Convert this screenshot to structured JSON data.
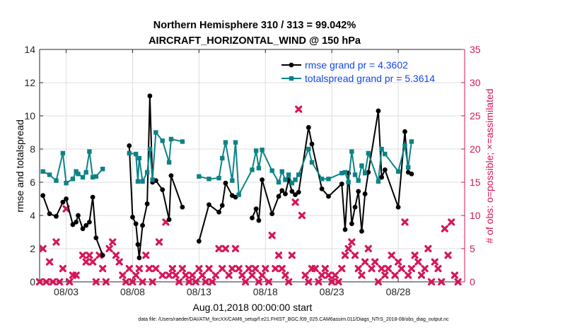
{
  "chart_data": {
    "type": "line",
    "title": "Northern Hemisphere 310 / 313 = 99.042%",
    "subtitle": "AIRCRAFT_HORIZONTAL_WIND @ 150 hPa",
    "xlabel": "Aug.01,2018 00:00:00 start",
    "ylabel": "rmse and totalspread",
    "ylabel_right": "# of obs: o=possible; ×=assimilated",
    "xlim": [
      1,
      33
    ],
    "ylim": [
      0,
      14
    ],
    "ylim_right": [
      0,
      35
    ],
    "xticks": [
      3,
      8,
      13,
      18,
      23,
      28
    ],
    "xticklabels": [
      "08/03",
      "08/08",
      "08/13",
      "08/18",
      "08/23",
      "08/28"
    ],
    "yticks": [
      0,
      2,
      4,
      6,
      8,
      10,
      12,
      14
    ],
    "yticks_right": [
      0,
      5,
      10,
      15,
      20,
      25,
      30,
      35
    ],
    "grid": true,
    "legend_position": "top-right",
    "series": [
      {
        "name": "rmse grand pr = 4.3602",
        "color": "#000000",
        "axis": "left",
        "points": [
          [
            1.25,
            5.2
          ],
          [
            1.75,
            4.1
          ],
          [
            2.25,
            3.95
          ],
          [
            2.75,
            4.8
          ],
          [
            3.0,
            5.0
          ],
          [
            3.5,
            3.45
          ],
          [
            3.75,
            3.6
          ],
          [
            3.9,
            4.0
          ],
          [
            4.25,
            3.2
          ],
          [
            4.5,
            3.4
          ],
          [
            4.75,
            3.6
          ],
          [
            5.0,
            5.1
          ],
          [
            5.25,
            2.65
          ],
          [
            5.75,
            1.6
          ],
          [
            7.75,
            8.2
          ],
          [
            8.0,
            3.9
          ],
          [
            8.25,
            3.5
          ],
          [
            8.4,
            2.25
          ],
          [
            8.5,
            1.45
          ],
          [
            8.75,
            3.4
          ],
          [
            9.1,
            4.7
          ],
          [
            9.3,
            11.2
          ],
          [
            9.5,
            6.0
          ],
          [
            9.75,
            6.1
          ],
          [
            10.25,
            5.55
          ],
          [
            10.75,
            3.75
          ],
          [
            10.9,
            6.4
          ],
          [
            11.75,
            4.5
          ],
          [
            13.0,
            2.45
          ],
          [
            13.75,
            4.65
          ],
          [
            14.5,
            4.2
          ],
          [
            14.75,
            4.6
          ],
          [
            15.0,
            5.95
          ],
          [
            15.5,
            5.2
          ],
          [
            15.75,
            5.1
          ],
          [
            17.0,
            3.85
          ],
          [
            17.3,
            4.4
          ],
          [
            17.5,
            3.7
          ],
          [
            17.75,
            6.15
          ],
          [
            18.5,
            4.1
          ],
          [
            19.0,
            5.15
          ],
          [
            19.25,
            5.5
          ],
          [
            19.5,
            5.3
          ],
          [
            19.75,
            6.15
          ],
          [
            20.0,
            5.45
          ],
          [
            20.25,
            5.25
          ],
          [
            20.5,
            5.4
          ],
          [
            21.25,
            9.3
          ],
          [
            21.5,
            8.3
          ],
          [
            22.25,
            5.6
          ],
          [
            22.75,
            5.15
          ],
          [
            23.75,
            5.9
          ],
          [
            24.0,
            3.15
          ],
          [
            24.25,
            6.55
          ],
          [
            24.5,
            3.5
          ],
          [
            24.75,
            4.5
          ],
          [
            25.0,
            5.45
          ],
          [
            25.25,
            3.05
          ],
          [
            25.5,
            5.3
          ],
          [
            25.75,
            6.6
          ],
          [
            26.5,
            10.3
          ],
          [
            26.75,
            6.3
          ],
          [
            27.0,
            6.75
          ],
          [
            28.0,
            4.5
          ],
          [
            28.5,
            9.05
          ],
          [
            28.75,
            6.6
          ],
          [
            29.0,
            6.5
          ]
        ]
      },
      {
        "name": "totalspread grand pr = 5.3614",
        "color": "#0d8286",
        "axis": "left",
        "points": [
          [
            1.25,
            6.65
          ],
          [
            1.75,
            6.45
          ],
          [
            2.25,
            6.1
          ],
          [
            2.75,
            7.75
          ],
          [
            3.0,
            5.95
          ],
          [
            3.5,
            6.2
          ],
          [
            3.75,
            6.65
          ],
          [
            3.9,
            6.5
          ],
          [
            4.25,
            6.3
          ],
          [
            4.5,
            6.6
          ],
          [
            4.75,
            7.85
          ],
          [
            5.0,
            6.3
          ],
          [
            5.25,
            6.35
          ],
          [
            5.75,
            6.8
          ],
          [
            7.75,
            7.75
          ],
          [
            8.25,
            7.7
          ],
          [
            8.4,
            6.05
          ],
          [
            8.5,
            7.45
          ],
          [
            8.75,
            6.05
          ],
          [
            9.1,
            6.6
          ],
          [
            9.3,
            8.0
          ],
          [
            9.5,
            6.15
          ],
          [
            9.75,
            9.0
          ],
          [
            10.25,
            8.5
          ],
          [
            10.75,
            7.2
          ],
          [
            10.9,
            8.6
          ],
          [
            11.75,
            8.45
          ],
          [
            13.0,
            6.35
          ],
          [
            13.75,
            6.2
          ],
          [
            14.5,
            6.25
          ],
          [
            14.75,
            7.45
          ],
          [
            15.0,
            8.4
          ],
          [
            15.5,
            6.1
          ],
          [
            15.75,
            8.4
          ],
          [
            16.0,
            5.25
          ],
          [
            17.0,
            6.75
          ],
          [
            17.3,
            7.9
          ],
          [
            17.5,
            6.85
          ],
          [
            17.75,
            7.95
          ],
          [
            18.5,
            6.7
          ],
          [
            19.0,
            6.0
          ],
          [
            19.25,
            6.65
          ],
          [
            19.5,
            6.15
          ],
          [
            19.75,
            6.45
          ],
          [
            20.0,
            5.95
          ],
          [
            20.25,
            6.15
          ],
          [
            20.5,
            6.45
          ],
          [
            21.25,
            8.0
          ],
          [
            21.5,
            7.2
          ],
          [
            22.25,
            6.2
          ],
          [
            22.75,
            6.2
          ],
          [
            23.75,
            6.55
          ],
          [
            24.0,
            6.6
          ],
          [
            24.25,
            6.0
          ],
          [
            24.5,
            7.85
          ],
          [
            24.75,
            6.45
          ],
          [
            25.0,
            6.1
          ],
          [
            25.25,
            7.0
          ],
          [
            25.5,
            6.55
          ],
          [
            25.75,
            7.75
          ],
          [
            26.5,
            6.05
          ],
          [
            26.75,
            8.0
          ],
          [
            27.0,
            7.7
          ],
          [
            28.0,
            6.65
          ],
          [
            28.5,
            8.2
          ],
          [
            28.75,
            6.9
          ],
          [
            29.0,
            8.45
          ]
        ]
      },
      {
        "name": "obs assimilated",
        "color": "#d6155a",
        "axis": "right",
        "marker": "x",
        "points": [
          [
            1.0,
            0
          ],
          [
            1.25,
            5
          ],
          [
            1.5,
            0
          ],
          [
            1.75,
            3
          ],
          [
            2.0,
            0
          ],
          [
            2.25,
            6
          ],
          [
            2.5,
            0
          ],
          [
            2.75,
            2
          ],
          [
            3.0,
            11
          ],
          [
            3.25,
            0
          ],
          [
            3.5,
            1
          ],
          [
            3.75,
            1
          ],
          [
            4.25,
            4
          ],
          [
            4.5,
            3
          ],
          [
            4.75,
            4
          ],
          [
            5.0,
            3
          ],
          [
            5.25,
            0
          ],
          [
            5.5,
            4
          ],
          [
            5.75,
            2
          ],
          [
            6.0,
            0
          ],
          [
            6.25,
            5
          ],
          [
            6.5,
            6
          ],
          [
            6.75,
            4
          ],
          [
            7.0,
            3
          ],
          [
            7.25,
            1
          ],
          [
            7.5,
            0
          ],
          [
            7.75,
            2
          ],
          [
            8.0,
            0
          ],
          [
            8.25,
            1
          ],
          [
            8.5,
            2
          ],
          [
            8.75,
            0
          ],
          [
            9.0,
            4
          ],
          [
            9.25,
            2
          ],
          [
            9.5,
            0
          ],
          [
            9.75,
            2
          ],
          [
            10.0,
            6
          ],
          [
            10.25,
            1
          ],
          [
            10.5,
            9
          ],
          [
            10.75,
            1
          ],
          [
            11.0,
            2
          ],
          [
            11.25,
            1
          ],
          [
            11.5,
            0
          ],
          [
            11.75,
            2
          ],
          [
            12.0,
            1
          ],
          [
            12.25,
            0
          ],
          [
            12.5,
            1
          ],
          [
            12.75,
            0
          ],
          [
            13.0,
            2
          ],
          [
            13.25,
            1
          ],
          [
            13.5,
            0
          ],
          [
            13.75,
            2
          ],
          [
            14.0,
            0
          ],
          [
            14.25,
            1
          ],
          [
            14.5,
            5
          ],
          [
            14.75,
            2
          ],
          [
            15.0,
            5
          ],
          [
            15.25,
            1
          ],
          [
            15.5,
            2
          ],
          [
            15.75,
            5
          ],
          [
            16.0,
            2
          ],
          [
            16.25,
            1
          ],
          [
            16.5,
            0
          ],
          [
            16.75,
            2
          ],
          [
            17.0,
            1
          ],
          [
            17.25,
            2
          ],
          [
            17.5,
            0
          ],
          [
            17.75,
            1
          ],
          [
            18.0,
            2
          ],
          [
            18.25,
            0
          ],
          [
            18.5,
            7
          ],
          [
            18.75,
            2
          ],
          [
            19.0,
            4
          ],
          [
            19.25,
            2
          ],
          [
            19.5,
            1
          ],
          [
            19.75,
            0
          ],
          [
            20.0,
            4
          ],
          [
            20.25,
            12
          ],
          [
            20.5,
            26
          ],
          [
            20.75,
            10
          ],
          [
            21.0,
            1
          ],
          [
            21.25,
            0
          ],
          [
            21.5,
            2
          ],
          [
            21.75,
            2
          ],
          [
            22.0,
            0
          ],
          [
            22.25,
            1
          ],
          [
            22.5,
            2
          ],
          [
            22.75,
            1
          ],
          [
            23.0,
            0
          ],
          [
            23.25,
            1
          ],
          [
            23.5,
            0
          ],
          [
            23.75,
            2
          ],
          [
            24.0,
            4
          ],
          [
            24.25,
            5
          ],
          [
            24.5,
            6
          ],
          [
            24.75,
            4
          ],
          [
            25.0,
            2
          ],
          [
            25.25,
            1
          ],
          [
            25.5,
            3
          ],
          [
            25.75,
            5
          ],
          [
            26.0,
            2
          ],
          [
            26.25,
            3
          ],
          [
            26.5,
            0
          ],
          [
            26.75,
            2
          ],
          [
            27.0,
            1
          ],
          [
            27.25,
            2
          ],
          [
            27.5,
            4
          ],
          [
            27.75,
            1
          ],
          [
            28.0,
            3
          ],
          [
            28.25,
            2
          ],
          [
            28.5,
            9
          ],
          [
            28.75,
            1
          ],
          [
            29.0,
            2
          ],
          [
            29.25,
            4
          ],
          [
            29.5,
            3
          ],
          [
            29.75,
            1
          ],
          [
            30.0,
            2
          ],
          [
            30.25,
            5
          ],
          [
            30.5,
            0
          ],
          [
            30.75,
            3
          ],
          [
            31.0,
            2
          ],
          [
            31.25,
            0
          ],
          [
            31.5,
            8
          ],
          [
            31.75,
            4
          ],
          [
            32.0,
            9
          ],
          [
            32.25,
            1
          ],
          [
            32.5,
            0
          ]
        ]
      }
    ]
  },
  "footnote": "data file: /Users/raeder/DAI/ATM_forcXX/CAM6_setup/f.e21.FHIST_BGC.f09_025.CAM6assim.011/Diags_NTrS_2018-08/obs_diag_output.nc"
}
